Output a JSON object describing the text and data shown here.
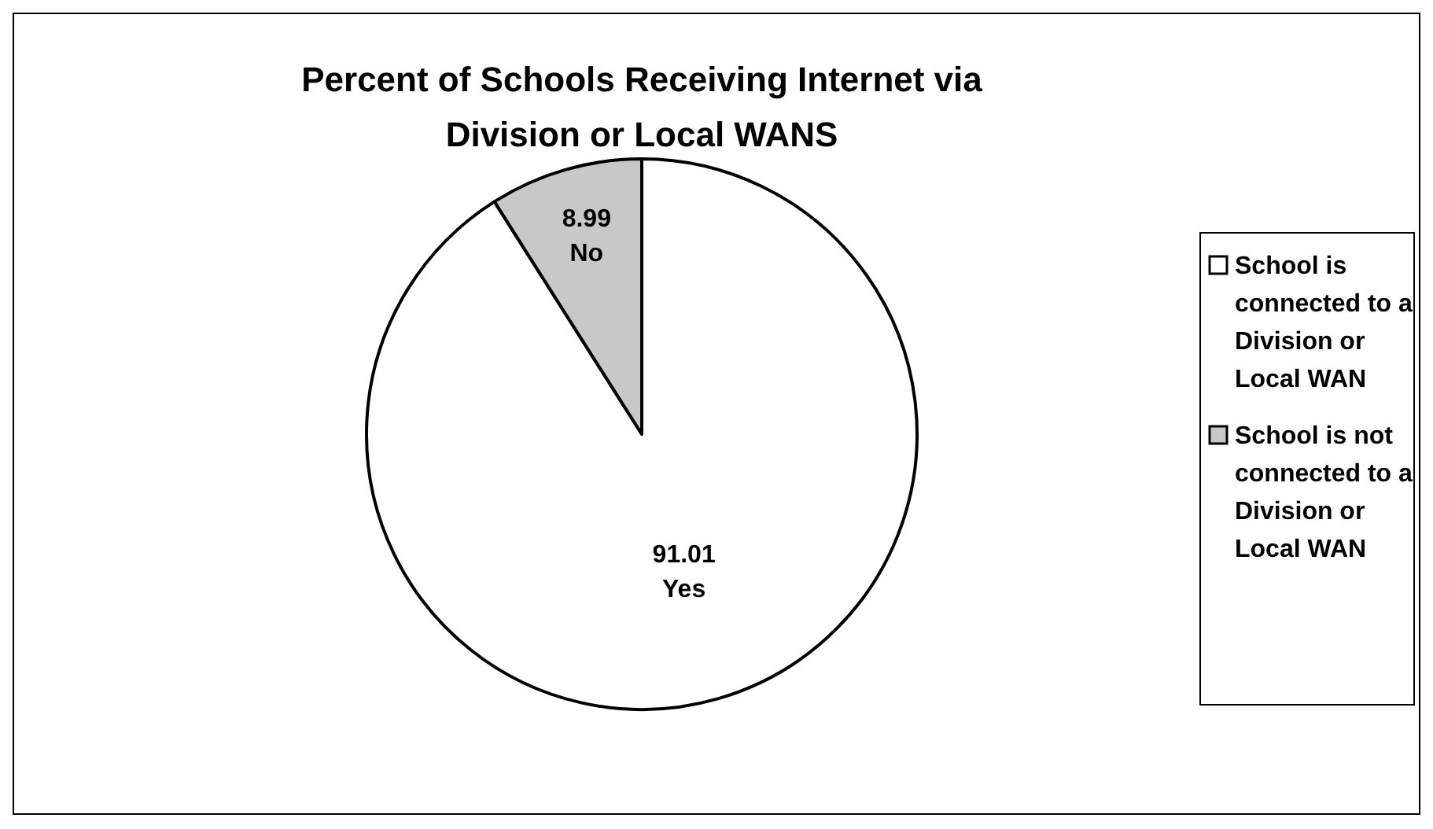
{
  "chart_data": {
    "type": "pie",
    "title": "Percent of Schools Receiving Internet via Division or Local WANS",
    "categories": [
      "School is connected to a Division or Local WAN",
      "School is not connected to a Division or Local WAN"
    ],
    "values": [
      91.01,
      8.99
    ],
    "colors": [
      "#ffffff",
      "#c8c8c8"
    ],
    "value_labels": [
      "91.01 Yes",
      "8.99 No"
    ],
    "legend": "right"
  }
}
